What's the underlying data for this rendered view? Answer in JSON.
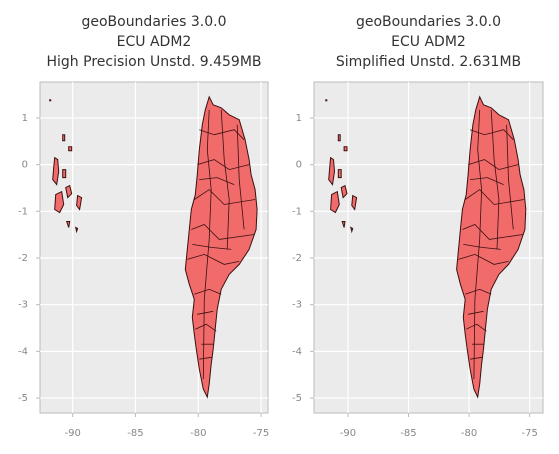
{
  "chart_data": [
    {
      "type": "map",
      "title": [
        "geoBoundaries 3.0.0",
        "ECU ADM2",
        "High Precision Unstd. 9.459MB"
      ],
      "color": "#f26b6b",
      "xlim": [
        -92.6,
        -74.45
      ],
      "ylim": [
        -5.32,
        1.77
      ],
      "xticks": [
        -90,
        -85,
        -80,
        -75
      ],
      "yticks": [
        1,
        0,
        -1,
        -2,
        -3,
        -4,
        -5
      ],
      "grid": true
    },
    {
      "type": "map",
      "title": [
        "geoBoundaries 3.0.0",
        "ECU ADM2",
        "Simplified Unstd. 2.631MB"
      ],
      "color": "#f26b6b",
      "xlim": [
        -92.8,
        -73.9
      ],
      "ylim": [
        -5.32,
        1.77
      ],
      "xticks": [
        -90,
        -85,
        -80,
        -75
      ],
      "yticks": [
        1,
        0,
        -1,
        -2,
        -3,
        -4,
        -5
      ],
      "grid": true
    }
  ]
}
